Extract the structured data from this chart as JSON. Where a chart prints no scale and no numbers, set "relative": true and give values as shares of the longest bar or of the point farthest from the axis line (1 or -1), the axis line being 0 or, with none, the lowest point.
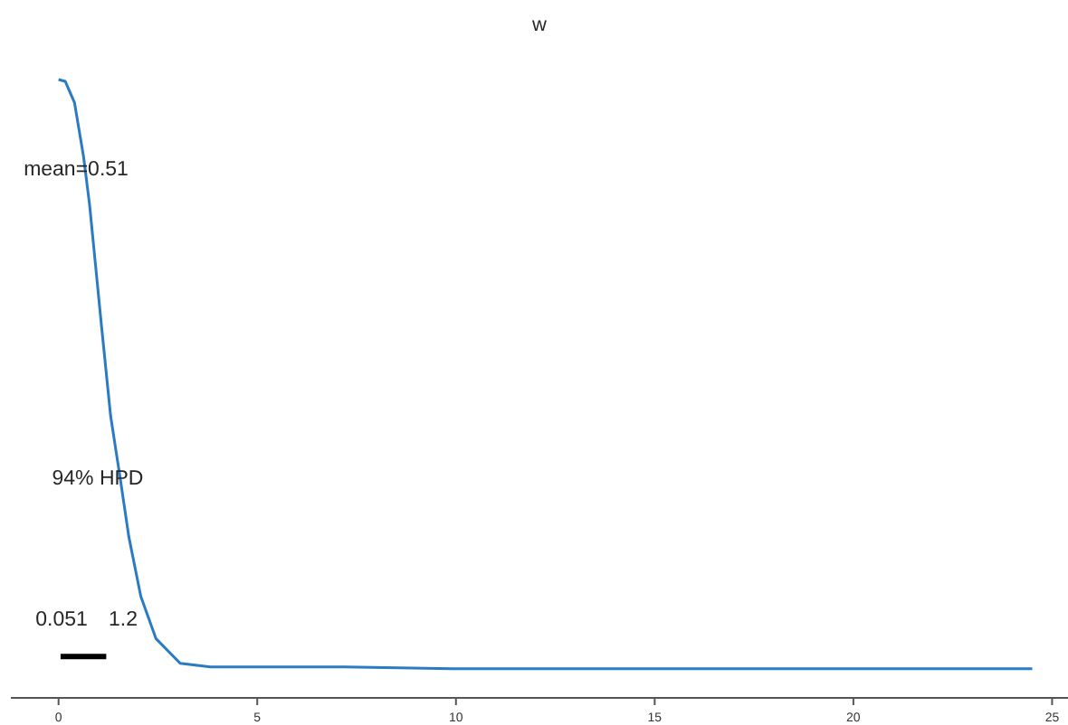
{
  "chart_data": {
    "type": "line",
    "title": "w",
    "relative": true,
    "xlim": [
      -1.2,
      25.4
    ],
    "xticks": [
      0,
      5,
      10,
      15,
      20,
      25
    ],
    "grid": false,
    "series": [
      {
        "color": "#2a7bc4",
        "x": [
          0,
          0.17,
          0.4,
          0.63,
          0.78,
          0.93,
          1.08,
          1.31,
          1.54,
          1.77,
          2.07,
          2.45,
          3.06,
          3.82,
          4.98,
          7.2,
          9.9,
          16.8,
          24.5
        ],
        "values": [
          1.0,
          0.997,
          0.963,
          0.875,
          0.798,
          0.7,
          0.602,
          0.456,
          0.36,
          0.26,
          0.164,
          0.096,
          0.056,
          0.05,
          0.05,
          0.05,
          0.047,
          0.047,
          0.047
        ]
      },
      {
        "color": "#000000",
        "x": [
          0.051,
          1.2
        ],
        "values": [
          0.067,
          0.067
        ]
      }
    ],
    "annotations": [
      "mean=0.51",
      "94% HPD",
      "0.051",
      "1.2"
    ]
  }
}
